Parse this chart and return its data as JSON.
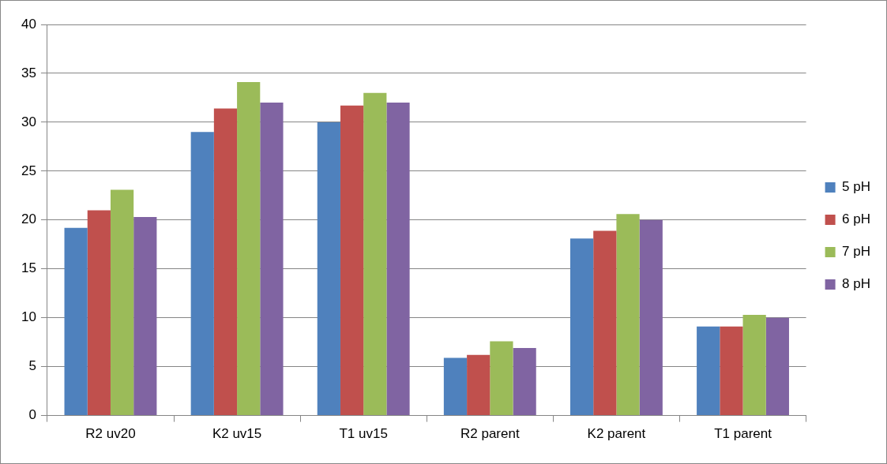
{
  "chart_data": {
    "type": "bar",
    "categories": [
      "R2 uv20",
      "K2 uv15",
      "T1 uv15",
      "R2 parent",
      "K2 parent",
      "T1 parent"
    ],
    "series": [
      {
        "name": "5 pH",
        "color": "#4f81bd",
        "values": [
          19.2,
          29.0,
          30.0,
          5.9,
          18.1,
          9.1
        ]
      },
      {
        "name": "6 pH",
        "color": "#c0504d",
        "values": [
          21.0,
          31.4,
          31.7,
          6.2,
          18.9,
          9.1
        ]
      },
      {
        "name": "7 pH",
        "color": "#9bbb59",
        "values": [
          23.1,
          34.1,
          33.0,
          7.6,
          20.6,
          10.3
        ]
      },
      {
        "name": "8 pH",
        "color": "#8064a2",
        "values": [
          20.3,
          32.0,
          32.0,
          6.9,
          20.0,
          10.0
        ]
      }
    ],
    "ylim": [
      0,
      40
    ],
    "yticks": [
      0,
      5,
      10,
      15,
      20,
      25,
      30,
      35,
      40
    ],
    "grid": "y",
    "legend": "right"
  }
}
